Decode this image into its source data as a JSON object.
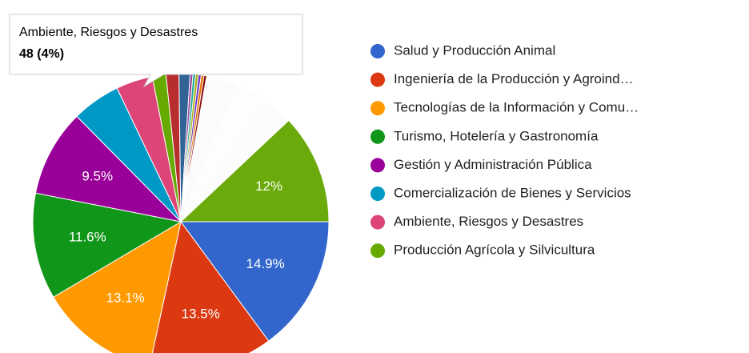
{
  "chart_data": {
    "type": "pie",
    "categories": [
      "Salud y Producción Animal",
      "Ingeniería de la Producción y Agroind…",
      "Tecnologías de la Información y Comu…",
      "Turismo, Hotelería y Gastronomía",
      "Gestión y Administración Pública",
      "Comercialización de Bienes y Servicios",
      "Ambiente, Riesgos y Desastres",
      "Producción Agrícola y Silvicultura",
      null,
      null,
      null,
      null,
      null,
      null,
      null,
      null,
      null,
      null,
      null,
      null
    ],
    "values": [
      14.9,
      13.5,
      13.1,
      11.6,
      9.5,
      5.3,
      4,
      1.5,
      1.4,
      1.2,
      0.3,
      0.3,
      0.3,
      0.3,
      0.3,
      0.3,
      3.4,
      3.4,
      3.4,
      12
    ],
    "value_labels": [
      "14.9%",
      "13.5%",
      "13.1%",
      "11.6%",
      "9.5%",
      null,
      null,
      null,
      null,
      null,
      null,
      null,
      null,
      null,
      null,
      null,
      null,
      null,
      null,
      "12%"
    ],
    "colors": [
      "#3366cc",
      "#dc3912",
      "#ff9900",
      "#109618",
      "#990099",
      "#0099c6",
      "#dd4477",
      "#66aa00",
      "#b82e2e",
      "#316395",
      "#994499",
      "#22aa99",
      "#aaaa11",
      "#6633cc",
      "#e67300",
      "#8b0707",
      "#fbfbfb",
      "#fdfdfd",
      "#fcfcfc",
      "#6aaa0a"
    ],
    "tooltip": {
      "title": "Ambiente, Riesgos y Desastres",
      "text": "48 (4%)"
    }
  }
}
